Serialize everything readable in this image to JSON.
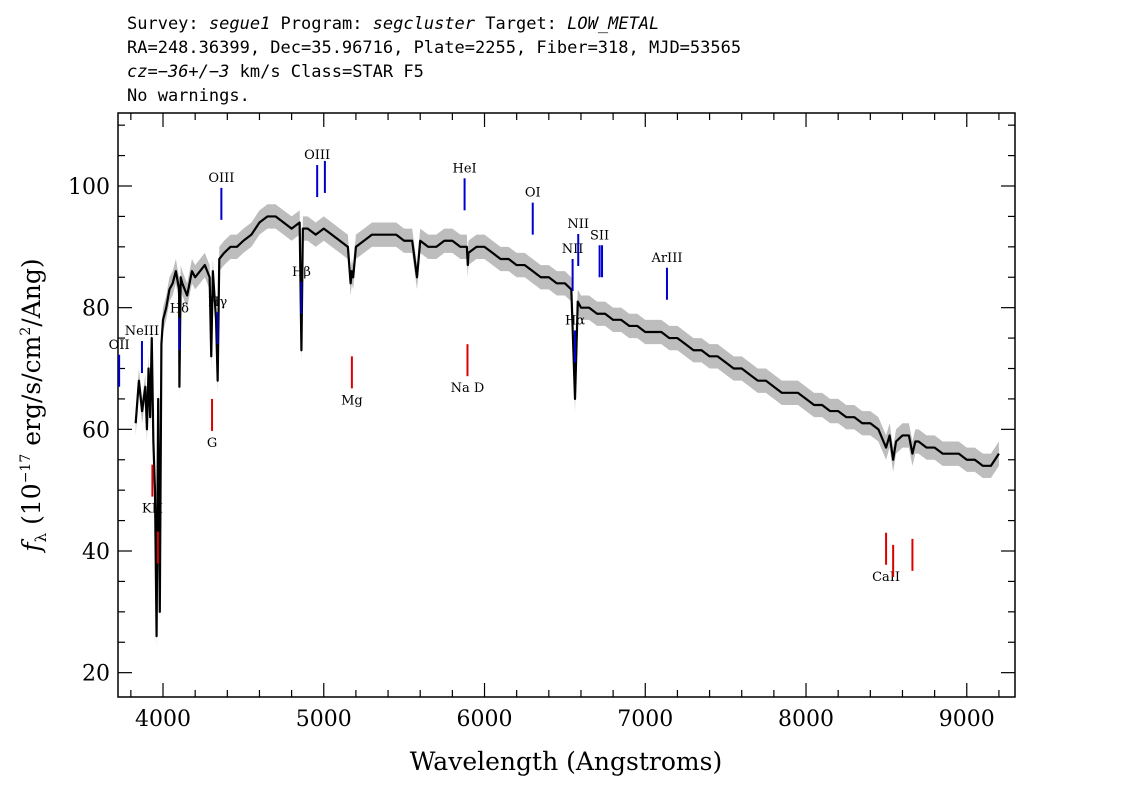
{
  "header": {
    "line1": {
      "survey_prefix": "Survey: ",
      "survey": "segue1",
      "program_prefix": " Program: ",
      "program": "segcluster",
      "target_prefix": " Target: ",
      "target": "LOW_METAL"
    },
    "line2": "RA=248.36399, Dec=35.96716, Plate=2255, Fiber=318, MJD=53565",
    "line3": {
      "cz": "cz",
      "cz_value": "=−36+/−3",
      "rest": " km/s Class=STAR F5"
    },
    "line4": "No warnings."
  },
  "chart_data": {
    "type": "line",
    "title": "",
    "xlabel": "Wavelength (Angstroms)",
    "ylabel": "f_λ (10^-17 erg/s/cm^2/Ang)",
    "xlim": [
      3720,
      9300
    ],
    "ylim": [
      16,
      112
    ],
    "x_ticks": [
      4000,
      5000,
      6000,
      7000,
      8000,
      9000
    ],
    "y_ticks": [
      20,
      40,
      60,
      80,
      100
    ],
    "grid": false,
    "colors": {
      "flux": "#000000",
      "error_band": "#bdbdbd",
      "emission": "#0000cc",
      "absorption": "#dd0000"
    },
    "series": [
      {
        "x": [
          3830,
          3850,
          3870,
          3890,
          3900,
          3910,
          3920,
          3930,
          3940,
          3950,
          3960,
          3970,
          3980,
          3990,
          4000,
          4020,
          4040,
          4060,
          4080,
          4100,
          4102,
          4110,
          4120,
          4150,
          4180,
          4200,
          4230,
          4260,
          4290,
          4300,
          4310,
          4320,
          4330,
          4340,
          4350,
          4380,
          4420,
          4460,
          4500,
          4550,
          4600,
          4650,
          4700,
          4750,
          4800,
          4850,
          4861,
          4870,
          4900,
          4950,
          5000,
          5050,
          5100,
          5150,
          5167,
          5175,
          5183,
          5200,
          5250,
          5300,
          5350,
          5400,
          5450,
          5500,
          5550,
          5580,
          5600,
          5650,
          5700,
          5750,
          5800,
          5850,
          5890,
          5896,
          5900,
          5950,
          6000,
          6050,
          6100,
          6150,
          6200,
          6250,
          6300,
          6350,
          6400,
          6450,
          6500,
          6540,
          6563,
          6580,
          6600,
          6650,
          6700,
          6750,
          6800,
          6850,
          6900,
          6950,
          7000,
          7050,
          7100,
          7150,
          7200,
          7250,
          7300,
          7350,
          7400,
          7450,
          7500,
          7550,
          7600,
          7650,
          7700,
          7750,
          7800,
          7850,
          7900,
          7950,
          8000,
          8050,
          8100,
          8150,
          8200,
          8250,
          8300,
          8350,
          8400,
          8450,
          8498,
          8520,
          8542,
          8560,
          8600,
          8640,
          8662,
          8680,
          8700,
          8750,
          8800,
          8850,
          8900,
          8950,
          9000,
          9050,
          9100,
          9150,
          9200
        ],
        "y": [
          61,
          68,
          63,
          67,
          60,
          70,
          62,
          75,
          58,
          50,
          26,
          65,
          30,
          74,
          78,
          80,
          83,
          84,
          86,
          83,
          67,
          85,
          84,
          82,
          86,
          85,
          86,
          87,
          85,
          72,
          86,
          82,
          78,
          68,
          88,
          89,
          90,
          90,
          91,
          92,
          94,
          95,
          95,
          94,
          93,
          94,
          73,
          93,
          93,
          92,
          93,
          92,
          91,
          90,
          84,
          86,
          85,
          90,
          91,
          92,
          92,
          92,
          92,
          91,
          91,
          85,
          91,
          90,
          90,
          91,
          91,
          90,
          90,
          87,
          89,
          90,
          90,
          89,
          88,
          88,
          87,
          87,
          86,
          85,
          85,
          84,
          84,
          83,
          65,
          81,
          80,
          80,
          79,
          79,
          78,
          78,
          77,
          77,
          76,
          76,
          76,
          75,
          75,
          74,
          73,
          73,
          72,
          72,
          71,
          70,
          70,
          69,
          68,
          68,
          67,
          66,
          66,
          66,
          65,
          64,
          64,
          63,
          63,
          62,
          62,
          61,
          61,
          60,
          57,
          59,
          55,
          58,
          59,
          59,
          56,
          58,
          58,
          57,
          57,
          56,
          56,
          56,
          55,
          55,
          54,
          54,
          56
        ]
      }
    ],
    "line_markers": [
      {
        "label": "OII",
        "x": 3727,
        "kind": "emission"
      },
      {
        "label": "NeIII",
        "x": 3869,
        "kind": "emission"
      },
      {
        "label": "Hδ",
        "x": 4102,
        "kind": "emission"
      },
      {
        "label": "Hγ",
        "x": 4340,
        "kind": "emission"
      },
      {
        "label": "OIII",
        "x": 4363,
        "kind": "emission"
      },
      {
        "label": "Hβ",
        "x": 4861,
        "kind": "emission"
      },
      {
        "label": "OIII",
        "x": 4959,
        "kind": "emission"
      },
      {
        "label": "",
        "x": 5007,
        "kind": "emission"
      },
      {
        "label": "HeI",
        "x": 5876,
        "kind": "emission"
      },
      {
        "label": "OI",
        "x": 6300,
        "kind": "emission"
      },
      {
        "label": "NII",
        "x": 6548,
        "kind": "emission"
      },
      {
        "label": "Hα",
        "x": 6563,
        "kind": "emission"
      },
      {
        "label": "NII",
        "x": 6583,
        "kind": "emission"
      },
      {
        "label": "SII",
        "x": 6716,
        "kind": "emission"
      },
      {
        "label": "",
        "x": 6731,
        "kind": "emission"
      },
      {
        "label": "ArIII",
        "x": 7135,
        "kind": "emission"
      },
      {
        "label": "KH",
        "x": 3934,
        "kind": "absorption"
      },
      {
        "label": "",
        "x": 3968,
        "kind": "absorption"
      },
      {
        "label": "G",
        "x": 4305,
        "kind": "absorption"
      },
      {
        "label": "Mg",
        "x": 5175,
        "kind": "absorption"
      },
      {
        "label": "Na D",
        "x": 5894,
        "kind": "absorption"
      },
      {
        "label": "CaII",
        "x": 8498,
        "kind": "absorption"
      },
      {
        "label": "",
        "x": 8542,
        "kind": "absorption"
      },
      {
        "label": "",
        "x": 8662,
        "kind": "absorption"
      }
    ]
  }
}
